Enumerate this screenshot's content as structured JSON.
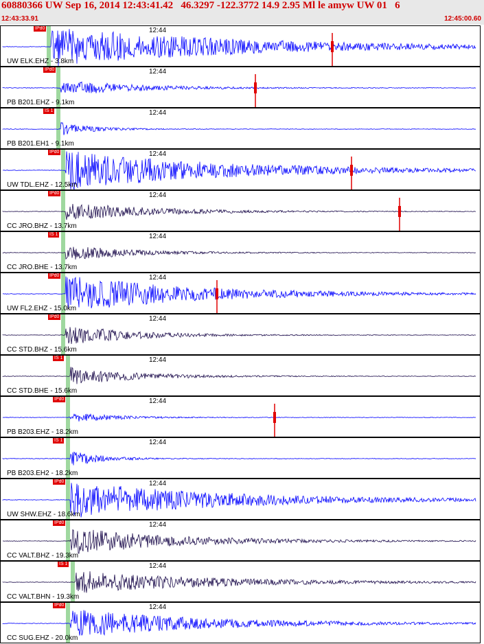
{
  "header": {
    "title": "60880366 UW Sep 16, 2014 12:43:41.42   46.3297 -122.3772 14.9 2.95 Ml le amyw UW 01   6",
    "time_start": "12:43:33.91",
    "time_end": "12:45:00.60"
  },
  "colors": {
    "vertical": "#0000ff",
    "horizontal": "#1a0a4a",
    "pick": "#e00000",
    "phase_band": "#9fd89f"
  },
  "tick_label": "12:44",
  "channels": [
    {
      "label": "UW ELK.EHZ - 3.8km",
      "pick": "IPd0",
      "amp": 30,
      "dur": 0.85,
      "color": "vertical",
      "pick_pos": 0.1,
      "marker": 0.69
    },
    {
      "label": "PB B201.EHZ - 9.1km",
      "pick": "IPd0",
      "amp": 12,
      "dur": 0.35,
      "color": "vertical",
      "pick_pos": 0.12,
      "marker": 0.53
    },
    {
      "label": "PB B201.EH1 - 9.1km",
      "pick": "IS 1",
      "amp": 10,
      "dur": 0.15,
      "color": "vertical",
      "pick_pos": 0.12,
      "marker": null
    },
    {
      "label": "UW TDL.EHZ - 12.5km",
      "pick": "IPd0",
      "amp": 30,
      "dur": 0.7,
      "color": "vertical",
      "pick_pos": 0.13,
      "marker": 0.73
    },
    {
      "label": "CC JRO.BHZ - 13.7km",
      "pick": "IPd0",
      "amp": 14,
      "dur": 0.4,
      "color": "horizontal",
      "pick_pos": 0.13,
      "marker": 0.83
    },
    {
      "label": "CC JRO.BHE - 13.7km",
      "pick": "IS 1",
      "amp": 12,
      "dur": 0.3,
      "color": "horizontal",
      "pick_pos": 0.13,
      "marker": null
    },
    {
      "label": "UW FL2.EHZ - 15.0km",
      "pick": "IPd0",
      "amp": 28,
      "dur": 0.6,
      "color": "vertical",
      "pick_pos": 0.13,
      "marker": 0.45
    },
    {
      "label": "CC STD.BHZ - 15.6km",
      "pick": "IPd0",
      "amp": 16,
      "dur": 0.3,
      "color": "horizontal",
      "pick_pos": 0.13,
      "marker": null
    },
    {
      "label": "CC STD.BHE - 15.6km",
      "pick": "IS 1",
      "amp": 14,
      "dur": 0.3,
      "color": "horizontal",
      "pick_pos": 0.14,
      "marker": null
    },
    {
      "label": "PB B203.EHZ - 18.2km",
      "pick": "IPd0",
      "amp": 8,
      "dur": 0.2,
      "color": "vertical",
      "pick_pos": 0.14,
      "marker": 0.57
    },
    {
      "label": "PB B203.EH2 - 18.2km",
      "pick": "IS 1",
      "amp": 12,
      "dur": 0.15,
      "color": "vertical",
      "pick_pos": 0.14,
      "marker": null
    },
    {
      "label": "UW SHW.EHZ - 18.6km",
      "pick": "IPd0",
      "amp": 28,
      "dur": 0.7,
      "color": "vertical",
      "pick_pos": 0.14,
      "marker": null
    },
    {
      "label": "CC VALT.BHZ - 19.3km",
      "pick": "IPd0",
      "amp": 20,
      "dur": 0.5,
      "color": "horizontal",
      "pick_pos": 0.14,
      "marker": null
    },
    {
      "label": "CC VALT.BHN - 19.3km",
      "pick": "IS 1",
      "amp": 18,
      "dur": 0.6,
      "color": "horizontal",
      "pick_pos": 0.15,
      "marker": null
    },
    {
      "label": "CC SUG.EHZ - 20.0km",
      "pick": "IPd0",
      "amp": 22,
      "dur": 0.6,
      "color": "vertical",
      "pick_pos": 0.14,
      "marker": null
    }
  ]
}
